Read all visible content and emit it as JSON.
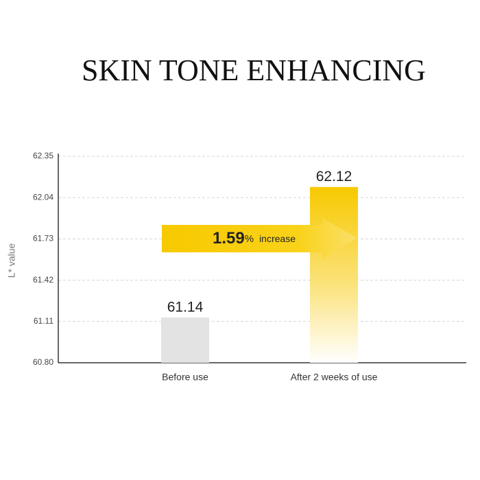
{
  "chart_data": {
    "type": "bar",
    "title": "SKIN TONE ENHANCING",
    "y_label": "L* value",
    "categories": [
      "Before use",
      "After 2 weeks of use"
    ],
    "values": [
      61.14,
      62.12
    ],
    "colors": [
      "#e3e3e3",
      "#f7c900"
    ],
    "ylim": [
      60.8,
      62.35
    ],
    "yticks": [
      {
        "value": 60.8,
        "label": "60.80"
      },
      61.11,
      61.42,
      61.73,
      62.04,
      62.35
    ],
    "grid": true,
    "annotation": {
      "number": "1.59",
      "unit": "%",
      "text": "increase"
    }
  }
}
